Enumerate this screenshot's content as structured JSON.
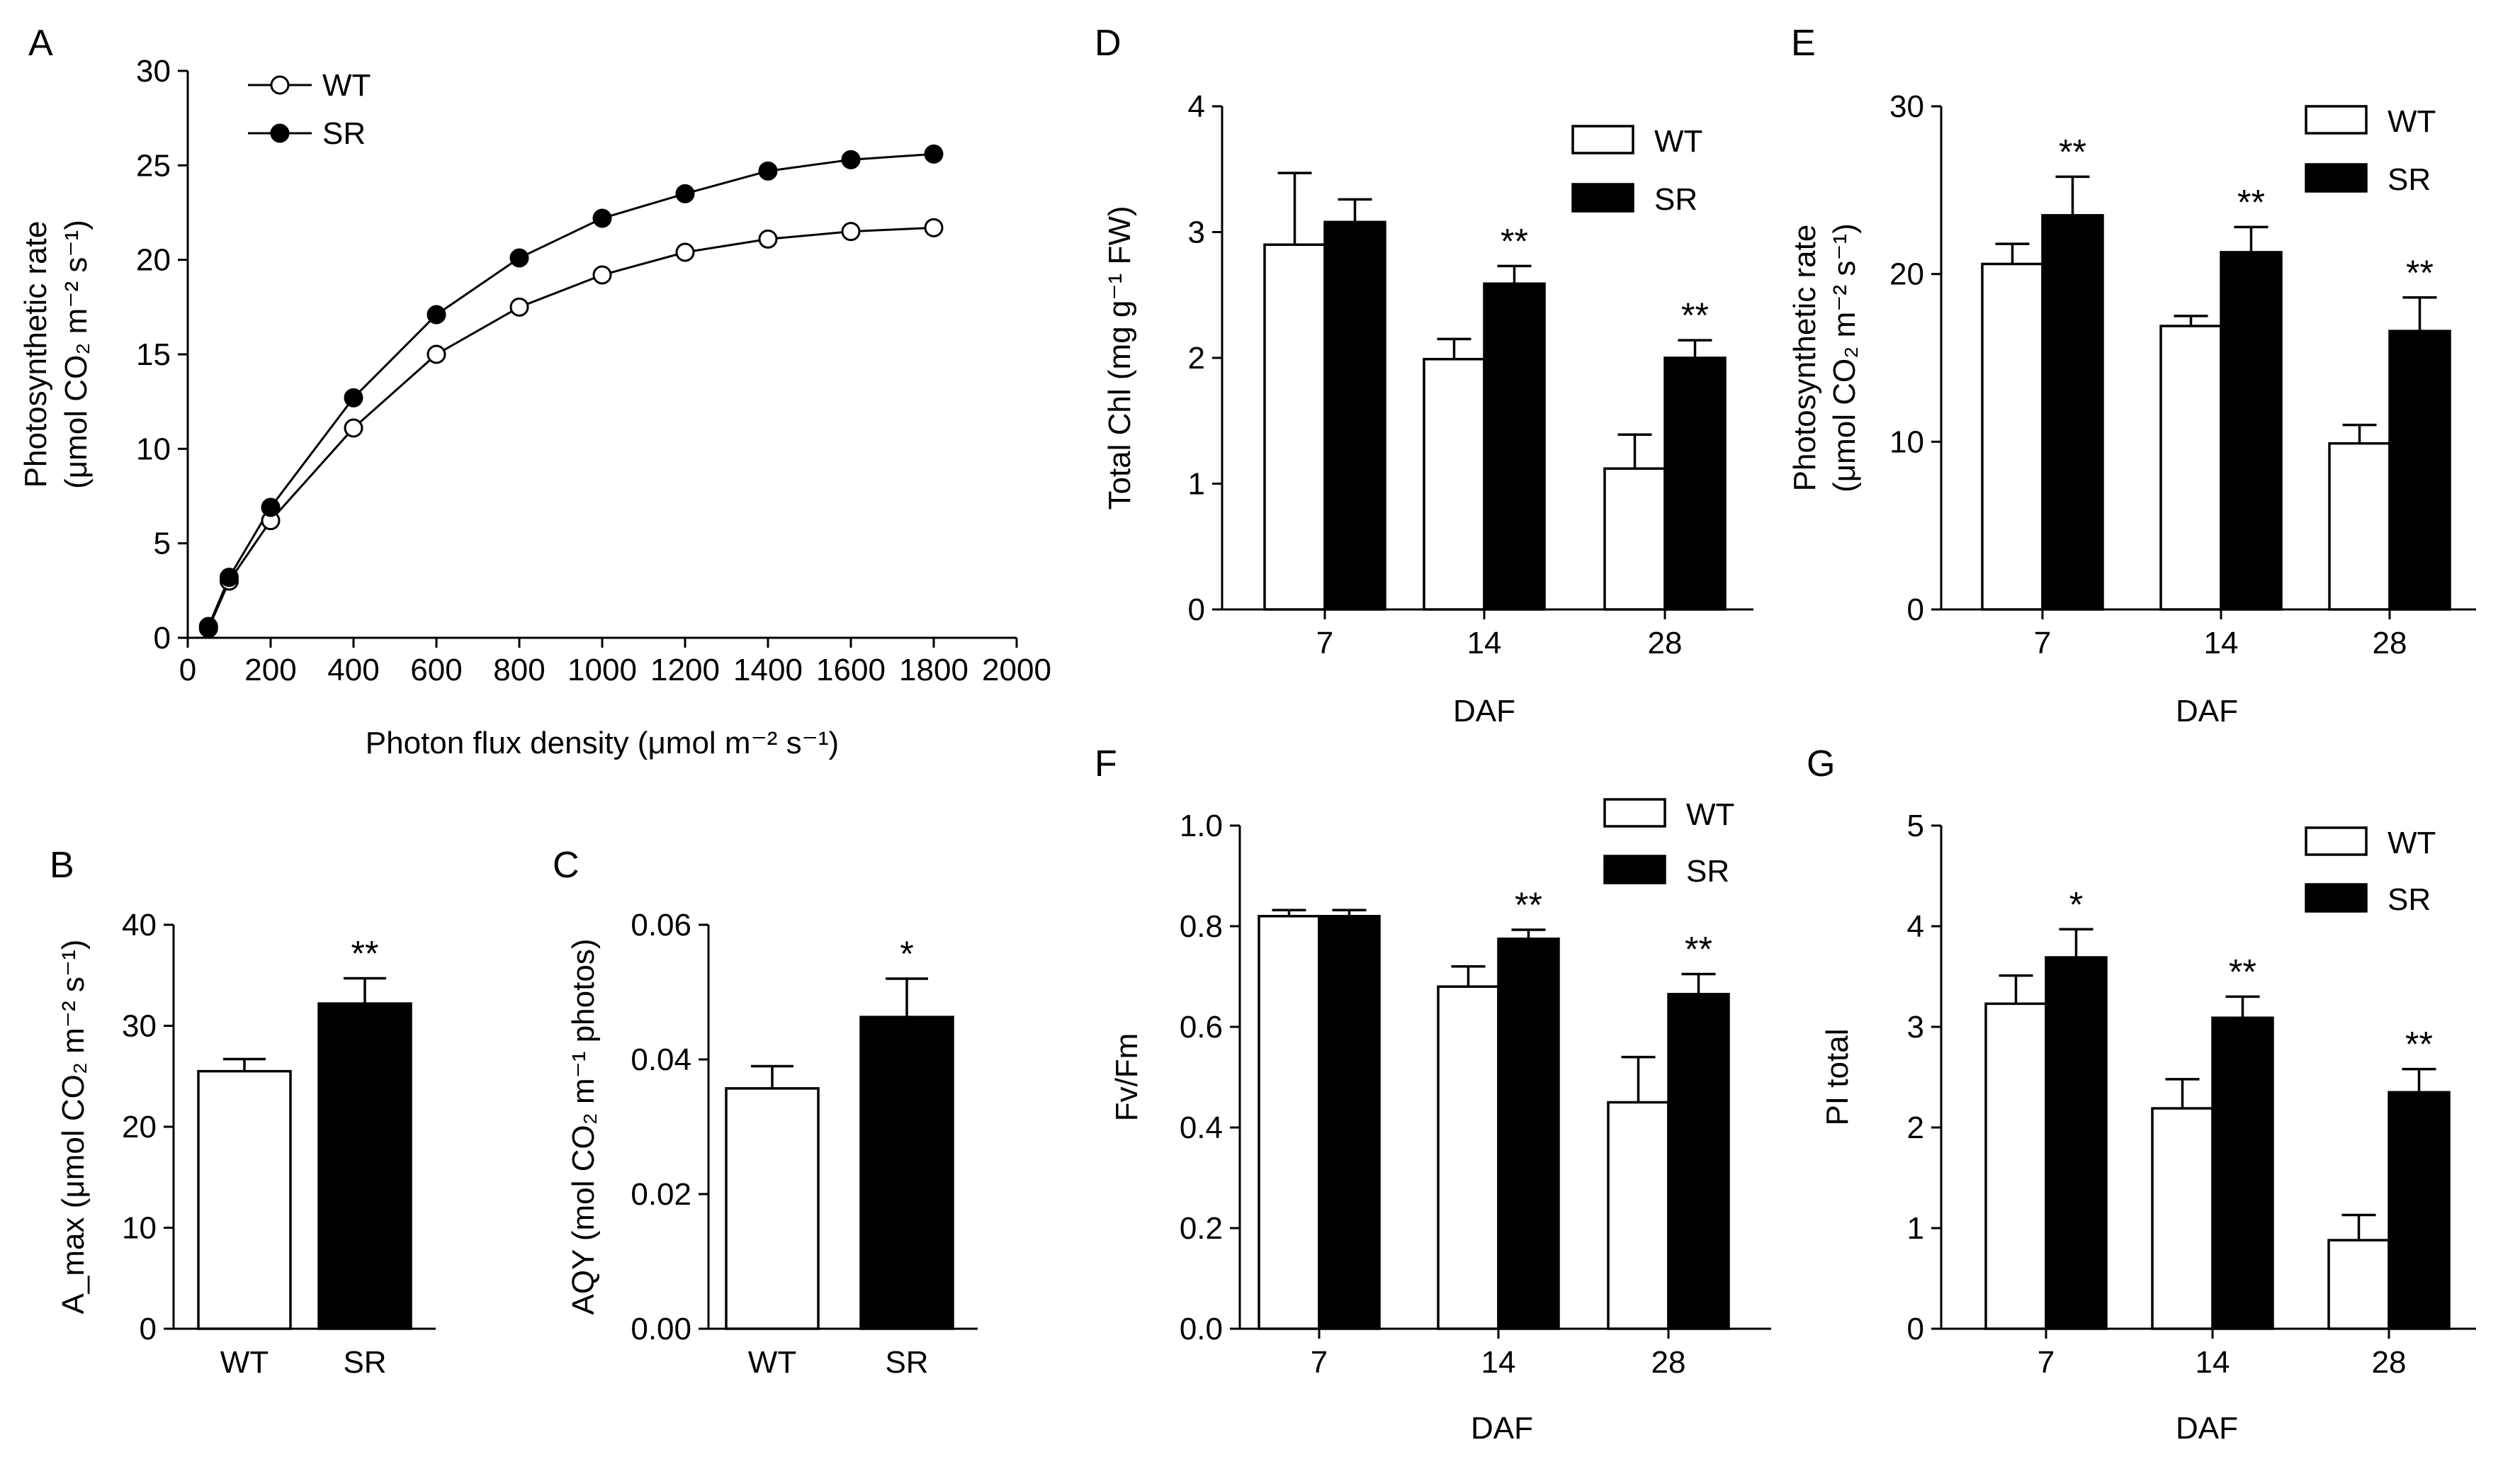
{
  "panel_letters": {
    "A": "A",
    "B": "B",
    "C": "C",
    "D": "D",
    "E": "E",
    "F": "F",
    "G": "G"
  },
  "legend_labels": {
    "wt": "WT",
    "sr": "SR"
  },
  "colors": {
    "wt_fill": "#ffffff",
    "sr_fill": "#000000",
    "stroke": "#000000"
  },
  "chart_data": [
    {
      "id": "A",
      "type": "line",
      "xlabel": "Photon flux density (μmol m⁻² s⁻¹)",
      "ylabel_line1": "Photosynthetic rate",
      "ylabel_line2": "(μmol CO₂ m⁻² s⁻¹)",
      "xlim": [
        0,
        2000
      ],
      "ylim": [
        0,
        30
      ],
      "xticks": [
        0,
        200,
        400,
        600,
        800,
        1000,
        1200,
        1400,
        1600,
        1800,
        2000
      ],
      "yticks": [
        0,
        5,
        10,
        15,
        20,
        25,
        30
      ],
      "x": [
        50,
        100,
        200,
        400,
        600,
        800,
        1000,
        1200,
        1400,
        1600,
        1800
      ],
      "series": [
        {
          "name": "WT",
          "marker": "open-circle",
          "values": [
            0.5,
            3.0,
            6.2,
            11.1,
            15.0,
            17.5,
            19.2,
            20.4,
            21.1,
            21.5,
            21.7
          ]
        },
        {
          "name": "SR",
          "marker": "filled-circle",
          "values": [
            0.6,
            3.2,
            6.9,
            12.7,
            17.1,
            20.1,
            22.2,
            23.5,
            24.7,
            25.3,
            25.6
          ]
        }
      ],
      "legend": "top-left"
    },
    {
      "id": "B",
      "type": "bar",
      "ylabel": "A_max (μmol CO₂ m⁻² s⁻¹)",
      "categories": [
        "WT",
        "SR"
      ],
      "values": [
        25.5,
        32.2
      ],
      "errors": [
        1.2,
        2.5
      ],
      "significance": [
        "",
        "**"
      ],
      "ylim": [
        0,
        40
      ],
      "yticks": [
        0,
        10,
        20,
        30,
        40
      ]
    },
    {
      "id": "C",
      "type": "bar",
      "ylabel": "AQY (mol CO₂ m⁻¹ photos)",
      "categories": [
        "WT",
        "SR"
      ],
      "values": [
        0.0357,
        0.0463
      ],
      "errors": [
        0.0033,
        0.0057
      ],
      "significance": [
        "",
        "*"
      ],
      "ylim": [
        0,
        0.06
      ],
      "yticks": [
        "0.00",
        "0.02",
        "0.04",
        "0.06"
      ]
    },
    {
      "id": "D",
      "type": "bar",
      "xlabel": "DAF",
      "ylabel": "Total Chl (mg g⁻¹ FW)",
      "categories": [
        "7",
        "14",
        "28"
      ],
      "series": [
        {
          "name": "WT",
          "values": [
            2.9,
            1.99,
            1.12
          ],
          "errors": [
            0.57,
            0.16,
            0.27
          ]
        },
        {
          "name": "SR",
          "values": [
            3.08,
            2.59,
            2.0
          ],
          "errors": [
            0.18,
            0.14,
            0.14
          ]
        }
      ],
      "significance": [
        "",
        "**",
        "**"
      ],
      "ylim": [
        0,
        4
      ],
      "yticks": [
        0,
        1,
        2,
        3,
        4
      ],
      "legend": "top-right"
    },
    {
      "id": "E",
      "type": "bar",
      "xlabel": "DAF",
      "ylabel_line1": "Photosynthetic rate",
      "ylabel_line2": "(μmol CO₂ m⁻² s⁻¹)",
      "categories": [
        "7",
        "14",
        "28"
      ],
      "series": [
        {
          "name": "WT",
          "values": [
            20.6,
            16.9,
            9.9
          ],
          "errors": [
            1.2,
            0.6,
            1.1
          ]
        },
        {
          "name": "SR",
          "values": [
            23.5,
            21.3,
            16.6
          ],
          "errors": [
            2.3,
            1.5,
            2.0
          ]
        }
      ],
      "significance": [
        "**",
        "**",
        "**"
      ],
      "ylim": [
        0,
        30
      ],
      "yticks": [
        0,
        10,
        20,
        30
      ],
      "legend": "top-right"
    },
    {
      "id": "F",
      "type": "bar",
      "xlabel": "DAF",
      "ylabel": "Fv/Fm",
      "categories": [
        "7",
        "14",
        "28"
      ],
      "series": [
        {
          "name": "WT",
          "values": [
            0.82,
            0.68,
            0.45
          ],
          "errors": [
            0.012,
            0.04,
            0.09
          ]
        },
        {
          "name": "SR",
          "values": [
            0.82,
            0.775,
            0.665
          ],
          "errors": [
            0.012,
            0.018,
            0.04
          ]
        }
      ],
      "significance": [
        "",
        "**",
        "**"
      ],
      "ylim": [
        0,
        1.0
      ],
      "yticks": [
        "0.0",
        "0.2",
        "0.4",
        "0.6",
        "0.8",
        "1.0"
      ],
      "legend": "top-right"
    },
    {
      "id": "G",
      "type": "bar",
      "xlabel": "DAF",
      "ylabel": "PI total",
      "categories": [
        "7",
        "14",
        "28"
      ],
      "series": [
        {
          "name": "WT",
          "values": [
            3.23,
            2.19,
            0.88
          ],
          "errors": [
            0.28,
            0.29,
            0.25
          ]
        },
        {
          "name": "SR",
          "values": [
            3.69,
            3.09,
            2.35
          ],
          "errors": [
            0.28,
            0.21,
            0.23
          ]
        }
      ],
      "significance": [
        "*",
        "**",
        "**"
      ],
      "ylim": [
        0,
        5
      ],
      "yticks": [
        0,
        1,
        2,
        3,
        4,
        5
      ],
      "legend": "top-right"
    }
  ]
}
